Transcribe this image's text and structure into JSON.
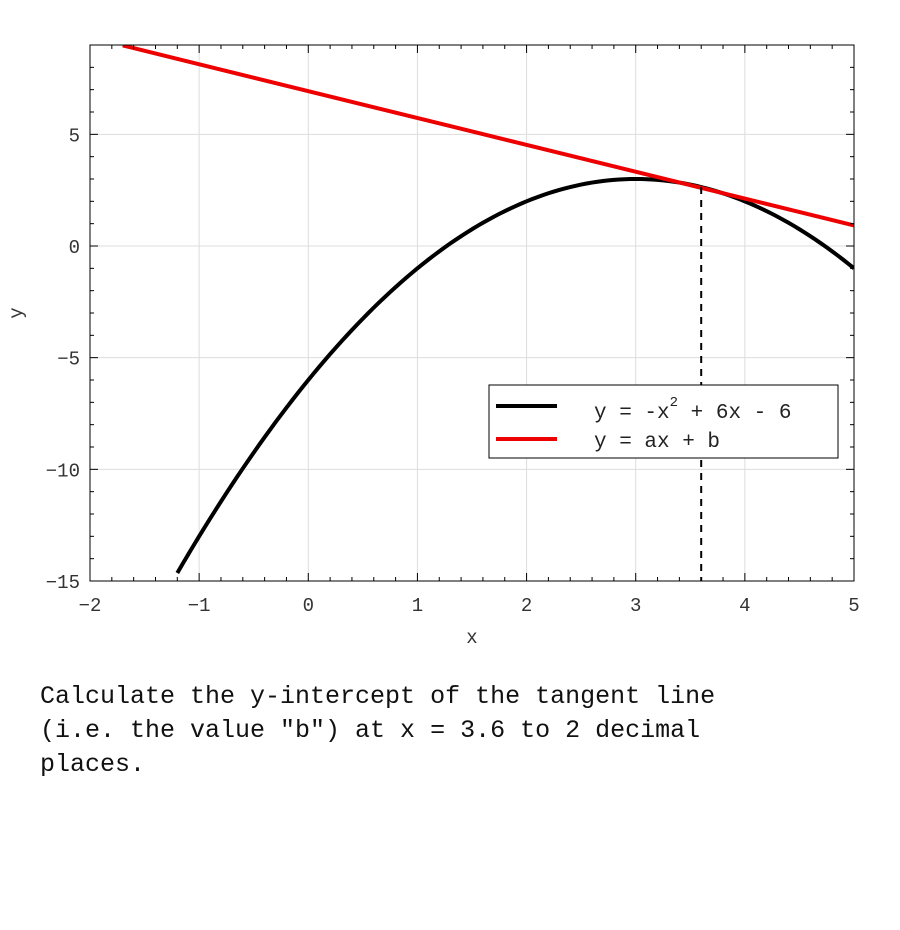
{
  "chart_data": {
    "type": "line",
    "xlabel": "x",
    "ylabel": "y",
    "xlim": [
      -2,
      5
    ],
    "ylim": [
      -15,
      9
    ],
    "xticks": [
      -2,
      -1,
      0,
      1,
      2,
      3,
      4,
      5
    ],
    "yticks": [
      -15,
      -10,
      -5,
      0,
      5
    ],
    "xtick_labels": [
      "−2",
      "−1",
      "0",
      "1",
      "2",
      "3",
      "4",
      "5"
    ],
    "ytick_labels": [
      "−15",
      "−10",
      "−5",
      "0",
      "5"
    ],
    "grid": true,
    "legend_position": "center-right",
    "series": [
      {
        "name": "y = -x^2 + 6x - 6",
        "legend_main": "y = -x",
        "legend_sup": "2",
        "legend_rest": " + 6x - 6",
        "color": "#000000",
        "x": [
          -1.2,
          -1.0,
          -0.5,
          0.0,
          0.5,
          1.0,
          1.5,
          2.0,
          2.5,
          3.0,
          3.5,
          4.0,
          4.5,
          5.0
        ],
        "y": [
          -14.64,
          -13.0,
          -9.25,
          -6.0,
          -3.25,
          -1.0,
          0.75,
          2.0,
          2.75,
          3.0,
          2.75,
          2.0,
          0.75,
          -1.0
        ]
      },
      {
        "name": "y = ax + b",
        "color": "#ee0000",
        "x": [
          -1.7,
          5.0
        ],
        "y": [
          8.98,
          0.92
        ]
      }
    ],
    "annotations": [
      {
        "type": "vertical-dashed-line",
        "x": 3.6,
        "y_from": -15,
        "y_to": 2.64
      }
    ]
  },
  "question": "Calculate the y-intercept of the tangent line\n(i.e. the value \"b\") at x = 3.6 to 2 decimal\nplaces."
}
